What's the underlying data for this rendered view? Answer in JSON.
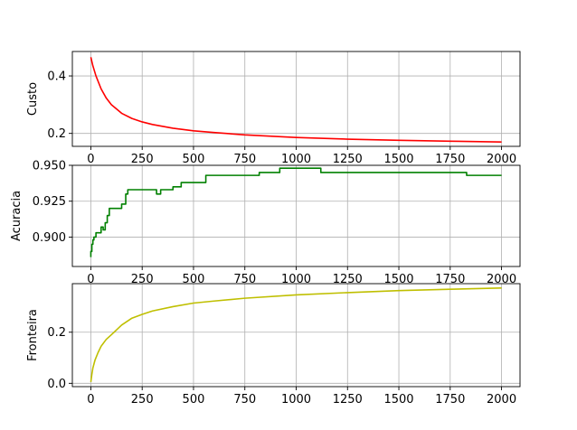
{
  "chart_data": [
    {
      "type": "line",
      "ylabel": "Custo",
      "color": "#ff0000",
      "grid": true,
      "xlim": [
        -90,
        2090
      ],
      "ylim": [
        0.155,
        0.485
      ],
      "xticks": [
        0,
        250,
        500,
        750,
        1000,
        1250,
        1500,
        1750,
        2000
      ],
      "yticks": [
        0.2,
        0.4
      ],
      "ytick_labels": [
        "0.2",
        "0.4"
      ],
      "series": [
        {
          "x": [
            0,
            10,
            25,
            50,
            75,
            100,
            150,
            200,
            250,
            300,
            400,
            500,
            600,
            750,
            1000,
            1250,
            1500,
            1750,
            2000
          ],
          "values": [
            0.465,
            0.435,
            0.4,
            0.355,
            0.323,
            0.3,
            0.27,
            0.252,
            0.24,
            0.231,
            0.218,
            0.209,
            0.203,
            0.195,
            0.186,
            0.18,
            0.176,
            0.173,
            0.17
          ]
        }
      ]
    },
    {
      "type": "line",
      "ylabel": "Acuracia",
      "color": "#008000",
      "grid": true,
      "xlim": [
        -90,
        2090
      ],
      "ylim": [
        0.8795,
        0.95
      ],
      "xticks": [
        0,
        250,
        500,
        750,
        1000,
        1250,
        1500,
        1750,
        2000
      ],
      "yticks": [
        0.9,
        0.925,
        0.95
      ],
      "ytick_labels": [
        "0.900",
        "0.925",
        "0.950"
      ],
      "series": [
        {
          "x": [
            0,
            0,
            5,
            5,
            10,
            10,
            15,
            15,
            25,
            25,
            50,
            50,
            60,
            60,
            70,
            70,
            80,
            80,
            90,
            90,
            100,
            100,
            150,
            150,
            170,
            170,
            180,
            180,
            320,
            320,
            340,
            340,
            400,
            400,
            440,
            440,
            560,
            560,
            820,
            820,
            920,
            920,
            1120,
            1120,
            1830,
            1830,
            2000
          ],
          "values": [
            0.886,
            0.89,
            0.89,
            0.895,
            0.895,
            0.898,
            0.898,
            0.9,
            0.9,
            0.903,
            0.903,
            0.907,
            0.907,
            0.905,
            0.905,
            0.91,
            0.91,
            0.915,
            0.915,
            0.92,
            0.92,
            0.92,
            0.92,
            0.923,
            0.923,
            0.93,
            0.93,
            0.933,
            0.933,
            0.93,
            0.93,
            0.933,
            0.933,
            0.935,
            0.935,
            0.938,
            0.938,
            0.943,
            0.943,
            0.945,
            0.945,
            0.948,
            0.948,
            0.945,
            0.945,
            0.943,
            0.943
          ]
        }
      ]
    },
    {
      "type": "line",
      "ylabel": "Fronteira",
      "color": "#bfbf00",
      "grid": true,
      "xlim": [
        -90,
        2090
      ],
      "ylim": [
        -0.013,
        0.39
      ],
      "xticks": [
        0,
        250,
        500,
        750,
        1000,
        1250,
        1500,
        1750,
        2000
      ],
      "yticks": [
        0.0,
        0.2
      ],
      "ytick_labels": [
        "0.0",
        "0.2"
      ],
      "series": [
        {
          "x": [
            0,
            5,
            10,
            20,
            35,
            50,
            75,
            100,
            150,
            200,
            250,
            300,
            400,
            500,
            600,
            750,
            1000,
            1250,
            1500,
            1750,
            2000
          ],
          "values": [
            0.005,
            0.035,
            0.06,
            0.09,
            0.12,
            0.145,
            0.172,
            0.19,
            0.228,
            0.255,
            0.27,
            0.283,
            0.3,
            0.314,
            0.322,
            0.333,
            0.346,
            0.355,
            0.363,
            0.368,
            0.373
          ]
        }
      ]
    }
  ]
}
